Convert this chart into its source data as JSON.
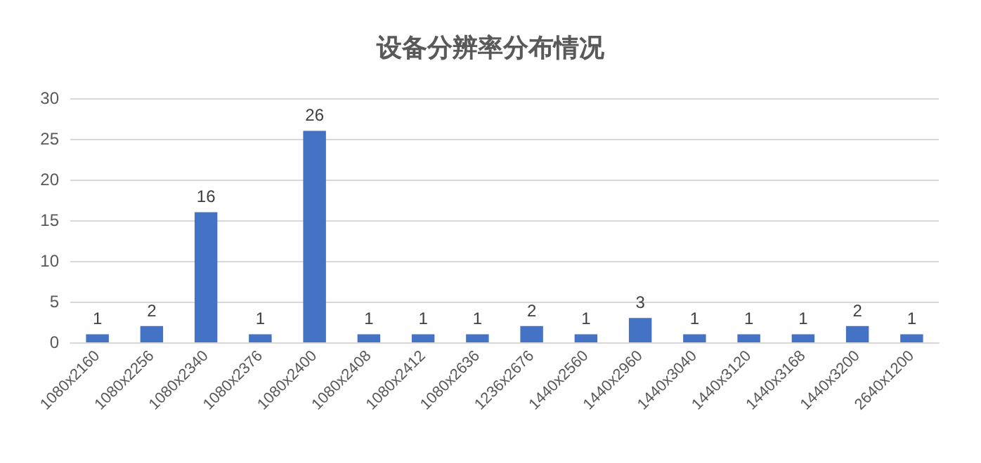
{
  "chart_data": {
    "type": "bar",
    "title": "设备分辨率分布情况",
    "categories": [
      "1080x2160",
      "1080x2256",
      "1080x2340",
      "1080x2376",
      "1080x2400",
      "1080x2408",
      "1080x2412",
      "1080x2636",
      "1236x2676",
      "1440x2560",
      "1440x2960",
      "1440x3040",
      "1440x3120",
      "1440x3168",
      "1440x3200",
      "2640x1200"
    ],
    "values": [
      1,
      2,
      16,
      1,
      26,
      1,
      1,
      1,
      2,
      1,
      3,
      1,
      1,
      1,
      2,
      1
    ],
    "color": "#4472c4",
    "ylim": [
      0,
      30
    ],
    "yticks": [
      0,
      5,
      10,
      15,
      20,
      25,
      30
    ],
    "grid": "y",
    "data_labels": true
  }
}
